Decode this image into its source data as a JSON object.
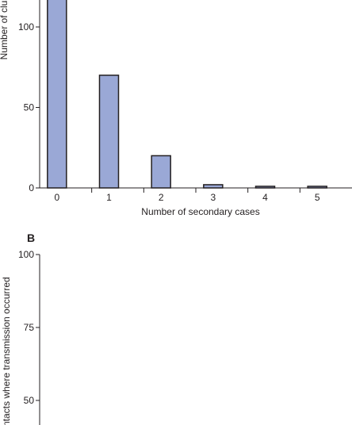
{
  "chart_data": [
    {
      "panel": "",
      "type": "bar",
      "categories": [
        "0",
        "1",
        "2",
        "3",
        "4",
        "5"
      ],
      "values": [
        120,
        70,
        20,
        2,
        1,
        1
      ],
      "xlabel": "Number of secondary cases",
      "ylabel": "Number of clusters",
      "ylim": [
        0,
        100
      ],
      "yticks": [
        0,
        50,
        100
      ],
      "bar_color": "#9aa8d6",
      "grid": false
    },
    {
      "panel": "B",
      "type": "bar",
      "categories": [],
      "values": [],
      "xlabel": "",
      "ylabel": "contacts where transmission occurred",
      "ylim": [
        50,
        100
      ],
      "yticks": [
        50,
        75,
        100
      ],
      "grid": false
    }
  ]
}
